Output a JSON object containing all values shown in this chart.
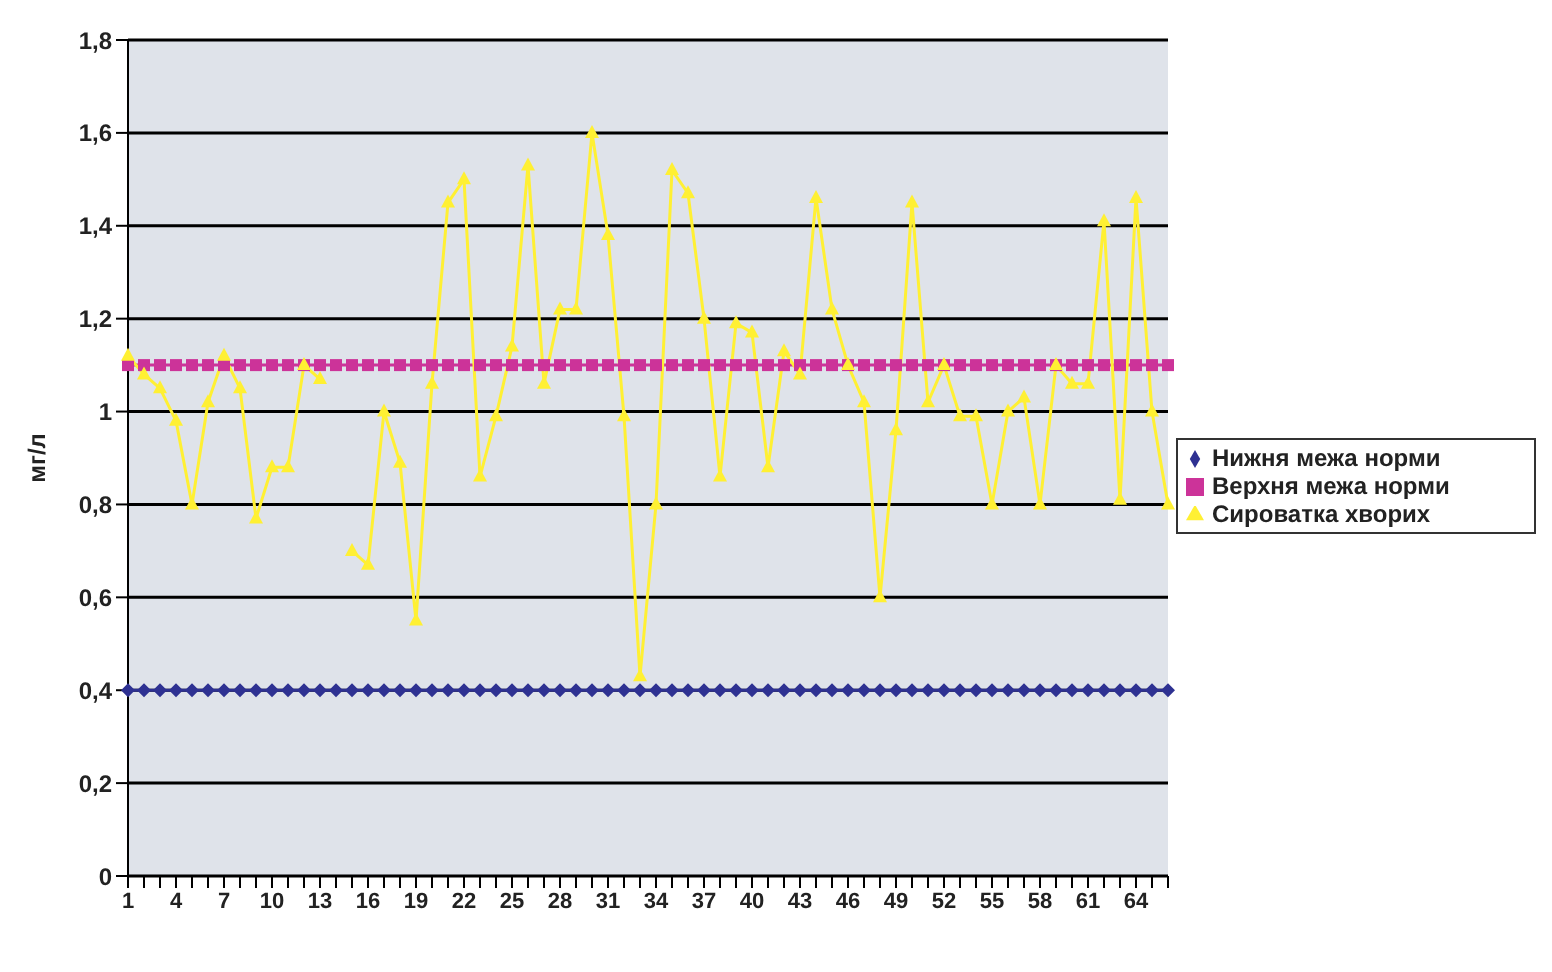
{
  "chart_data": {
    "type": "line",
    "ylabel": "мг/л",
    "categories": [
      "1",
      null,
      null,
      "4",
      null,
      null,
      "7",
      null,
      null,
      "10",
      null,
      null,
      "13",
      null,
      null,
      "16",
      null,
      null,
      "19",
      null,
      null,
      "22",
      null,
      null,
      "25",
      null,
      null,
      "28",
      null,
      null,
      "31",
      null,
      null,
      "34",
      null,
      null,
      "37",
      null,
      null,
      "40",
      null,
      null,
      "43",
      null,
      null,
      "46",
      null,
      null,
      "49",
      null,
      null,
      "52",
      null,
      null,
      "55",
      null,
      null,
      "58",
      null,
      null,
      "61",
      null,
      null,
      "64",
      null,
      null
    ],
    "series": [
      {
        "name": "Нижня межа норми",
        "color": "#2e3192",
        "marker": "diamond",
        "values": [
          0.4,
          0.4,
          0.4,
          0.4,
          0.4,
          0.4,
          0.4,
          0.4,
          0.4,
          0.4,
          0.4,
          0.4,
          0.4,
          0.4,
          0.4,
          0.4,
          0.4,
          0.4,
          0.4,
          0.4,
          0.4,
          0.4,
          0.4,
          0.4,
          0.4,
          0.4,
          0.4,
          0.4,
          0.4,
          0.4,
          0.4,
          0.4,
          0.4,
          0.4,
          0.4,
          0.4,
          0.4,
          0.4,
          0.4,
          0.4,
          0.4,
          0.4,
          0.4,
          0.4,
          0.4,
          0.4,
          0.4,
          0.4,
          0.4,
          0.4,
          0.4,
          0.4,
          0.4,
          0.4,
          0.4,
          0.4,
          0.4,
          0.4,
          0.4,
          0.4,
          0.4,
          0.4,
          0.4,
          0.4,
          0.4,
          0.4
        ]
      },
      {
        "name": "Верхня межа норми",
        "color": "#cc3399",
        "marker": "square",
        "values": [
          1.1,
          1.1,
          1.1,
          1.1,
          1.1,
          1.1,
          1.1,
          1.1,
          1.1,
          1.1,
          1.1,
          1.1,
          1.1,
          1.1,
          1.1,
          1.1,
          1.1,
          1.1,
          1.1,
          1.1,
          1.1,
          1.1,
          1.1,
          1.1,
          1.1,
          1.1,
          1.1,
          1.1,
          1.1,
          1.1,
          1.1,
          1.1,
          1.1,
          1.1,
          1.1,
          1.1,
          1.1,
          1.1,
          1.1,
          1.1,
          1.1,
          1.1,
          1.1,
          1.1,
          1.1,
          1.1,
          1.1,
          1.1,
          1.1,
          1.1,
          1.1,
          1.1,
          1.1,
          1.1,
          1.1,
          1.1,
          1.1,
          1.1,
          1.1,
          1.1,
          1.1,
          1.1,
          1.1,
          1.1,
          1.1,
          1.1
        ]
      },
      {
        "name": "Сироватка хворих",
        "color": "#fff033",
        "marker": "triangle",
        "values": [
          1.12,
          1.08,
          1.05,
          0.98,
          0.8,
          1.02,
          1.12,
          1.05,
          0.77,
          0.88,
          0.88,
          1.1,
          1.07,
          null,
          0.7,
          0.67,
          1.0,
          0.89,
          0.55,
          1.06,
          1.45,
          1.5,
          0.86,
          0.99,
          1.14,
          1.53,
          1.06,
          1.22,
          1.22,
          1.6,
          1.38,
          0.99,
          0.43,
          0.8,
          1.52,
          1.47,
          1.2,
          0.86,
          1.19,
          1.17,
          0.88,
          1.13,
          1.08,
          1.46,
          1.22,
          1.1,
          1.02,
          0.6,
          0.96,
          1.45,
          1.02,
          1.1,
          0.99,
          0.99,
          0.8,
          1.0,
          1.03,
          0.8,
          1.1,
          1.06,
          1.06,
          1.41,
          0.81,
          1.46,
          1.0,
          0.8
        ]
      }
    ],
    "ylim": [
      0,
      1.8
    ],
    "yticks": [
      0,
      {
        "value": 0.2,
        "label": "0,2"
      },
      {
        "value": 0.4,
        "label": "0,4"
      },
      {
        "value": 0.6,
        "label": "0,6"
      },
      {
        "value": 0.8,
        "label": "0,8"
      },
      1,
      {
        "value": 1.2,
        "label": "1,2"
      },
      {
        "value": 1.4,
        "label": "1,4"
      },
      {
        "value": 1.6,
        "label": "1,6"
      },
      {
        "value": 1.8,
        "label": "1,8"
      }
    ],
    "grid": "y",
    "legend": "right"
  }
}
